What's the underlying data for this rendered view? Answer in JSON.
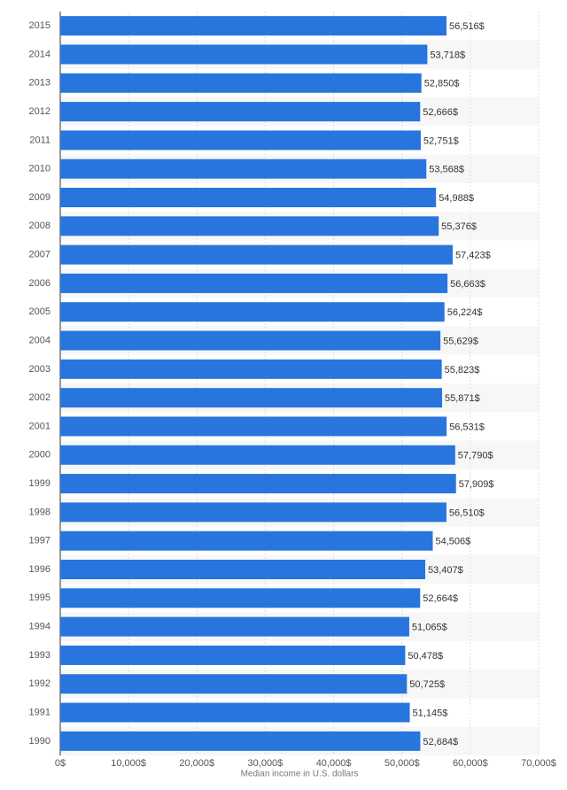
{
  "chart_data": {
    "type": "bar",
    "orientation": "horizontal",
    "x_label": "Median income in U.S. dollars",
    "categories": [
      "2015",
      "2014",
      "2013",
      "2012",
      "2011",
      "2010",
      "2009",
      "2008",
      "2007",
      "2006",
      "2005",
      "2004",
      "2003",
      "2002",
      "2001",
      "2000",
      "1999",
      "1998",
      "1997",
      "1996",
      "1995",
      "1994",
      "1993",
      "1992",
      "1991",
      "1990"
    ],
    "values": [
      56516,
      53718,
      52850,
      52666,
      52751,
      53568,
      54988,
      55376,
      57423,
      56663,
      56224,
      55629,
      55823,
      55871,
      56531,
      57790,
      57909,
      56510,
      54506,
      53407,
      52664,
      51065,
      50478,
      50725,
      51145,
      52684
    ],
    "value_labels": [
      "56,516$",
      "53,718$",
      "52,850$",
      "52,666$",
      "52,751$",
      "53,568$",
      "54,988$",
      "55,376$",
      "57,423$",
      "56,663$",
      "56,224$",
      "55,629$",
      "55,823$",
      "55,871$",
      "56,531$",
      "57,790$",
      "57,909$",
      "56,510$",
      "54,506$",
      "53,407$",
      "52,664$",
      "51,065$",
      "50,478$",
      "50,725$",
      "51,145$",
      "52,684$"
    ],
    "color": "#2876dd",
    "xlim": [
      0,
      70000
    ],
    "xticks": [
      {
        "value": 0,
        "label": "0$"
      },
      {
        "value": 10000,
        "label": "10,000$"
      },
      {
        "value": 20000,
        "label": "20,000$"
      },
      {
        "value": 30000,
        "label": "30,000$"
      },
      {
        "value": 40000,
        "label": "40,000$"
      },
      {
        "value": 50000,
        "label": "50,000$"
      },
      {
        "value": 60000,
        "label": "60,000$"
      },
      {
        "value": 70000,
        "label": "70,000$"
      }
    ],
    "grid": true
  }
}
